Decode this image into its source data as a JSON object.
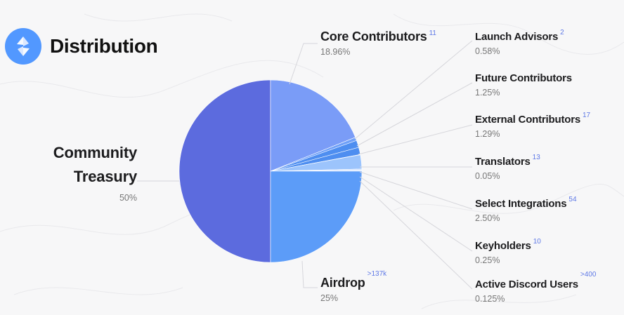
{
  "title": "Distribution",
  "logo_icon": "ens-logo-icon",
  "colors": {
    "community_treasury": "#5c6bde",
    "airdrop": "#5c9cf8",
    "core_contributors": "#7a9cf7",
    "small_slices": "#4e8ef0",
    "select_integrations": "#9cc4fc",
    "accent": "#5f79e6"
  },
  "labels": {
    "community": {
      "line1": "Community",
      "line2": "Treasury",
      "pct": "50%"
    },
    "core": {
      "name": "Core Contributors",
      "count": "11",
      "pct": "18.96%"
    },
    "airdrop": {
      "name": "Airdrop",
      "count": ">137k",
      "pct": "25%"
    },
    "launch": {
      "name": "Launch Advisors",
      "count": "2",
      "pct": "0.58%"
    },
    "future": {
      "name": "Future Contributors",
      "pct": "1.25%"
    },
    "external": {
      "name": "External Contributors",
      "count": "17",
      "pct": "1.29%"
    },
    "translators": {
      "name": "Translators",
      "count": "13",
      "pct": "0.05%"
    },
    "select": {
      "name": "Select Integrations",
      "count": "54",
      "pct": "2.50%"
    },
    "keyholders": {
      "name": "Keyholders",
      "count": "10",
      "pct": "0.25%"
    },
    "discord": {
      "name": "Active Discord Users",
      "count": ">400",
      "pct": "0.125%"
    }
  },
  "chart_data": {
    "type": "pie",
    "title": "Distribution",
    "slices": [
      {
        "label": "Community Treasury",
        "value": 50,
        "color": "#5c6bde"
      },
      {
        "label": "Core Contributors",
        "value": 18.96,
        "color": "#7a9cf7"
      },
      {
        "label": "Launch Advisors",
        "value": 0.58,
        "color": "#6fa0f8"
      },
      {
        "label": "Future Contributors",
        "value": 1.25,
        "color": "#4e8ef0"
      },
      {
        "label": "External Contributors",
        "value": 1.29,
        "color": "#4e8ef0"
      },
      {
        "label": "Translators",
        "value": 0.05,
        "color": "#c9dcfd"
      },
      {
        "label": "Select Integrations",
        "value": 2.5,
        "color": "#9cc4fc"
      },
      {
        "label": "Keyholders",
        "value": 0.25,
        "color": "#c9dcfd"
      },
      {
        "label": "Active Discord Users",
        "value": 0.125,
        "color": "#c9dcfd"
      },
      {
        "label": "Airdrop",
        "value": 25,
        "color": "#5c9cf8"
      }
    ]
  }
}
